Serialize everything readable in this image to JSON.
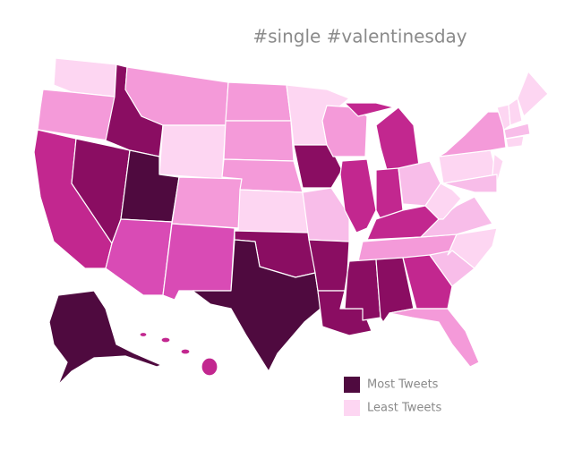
{
  "title": "#single #valentinesday",
  "legend": [
    {
      "label": "Most Tweets",
      "color": "#4f0a3f"
    },
    {
      "label": "Least Tweets",
      "color": "#fdd6f2"
    }
  ]
}
